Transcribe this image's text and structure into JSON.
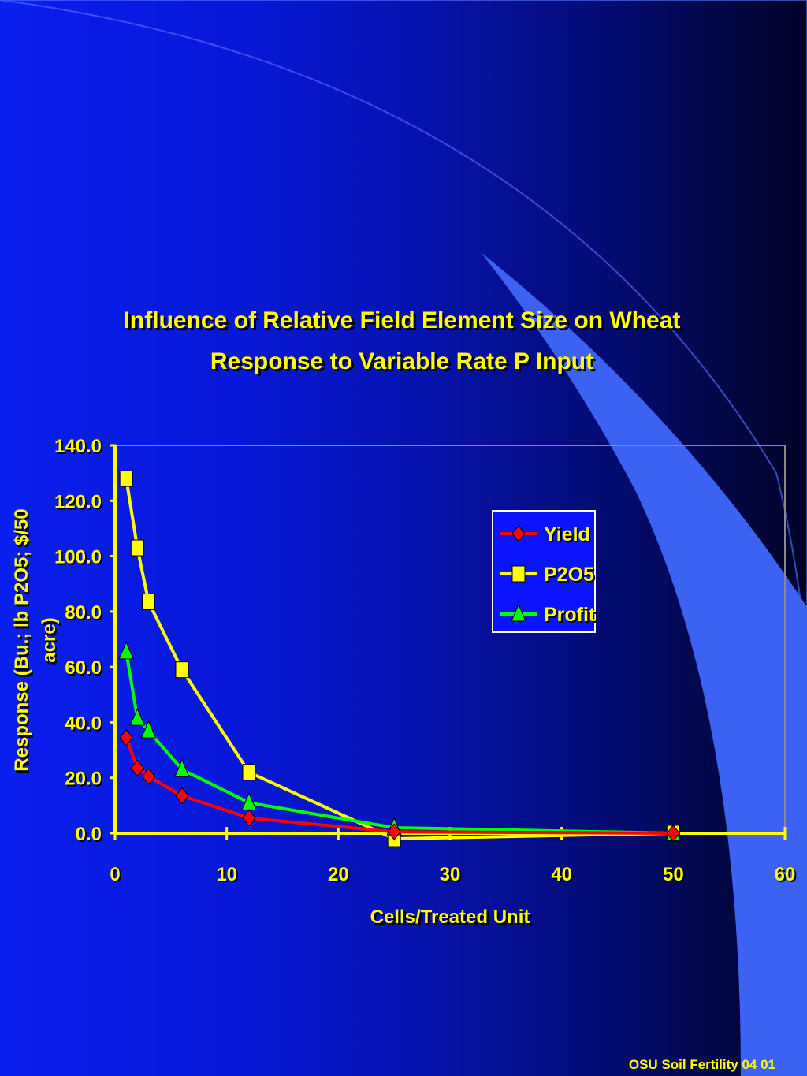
{
  "slide": {
    "footer": "OSU Soil Fertility 04 01"
  },
  "colors": {
    "axis": "#ffff00",
    "yield": "#ff0000",
    "p2o5": "#ffff00",
    "profit": "#00ff00",
    "legend_border": "#ffffff"
  },
  "chart_data": {
    "type": "line",
    "title": "Influence of Relative Field Element Size on Wheat Response to Variable Rate P Input",
    "title_lines": [
      "Influence of Relative Field Element Size on Wheat",
      "Response to Variable Rate P Input"
    ],
    "xlabel": "Cells/Treated Unit",
    "ylabel": "Response (Bu.; lb P2O5; $/50 acre)",
    "ylabel_lines": [
      "Response (Bu.; lb P2O5; $/50",
      "acre)"
    ],
    "xlim": [
      0,
      60
    ],
    "ylim": [
      0,
      140
    ],
    "x_ticks": [
      "0",
      "10",
      "20",
      "30",
      "40",
      "50",
      "60"
    ],
    "y_ticks": [
      "0.0",
      "20.0",
      "40.0",
      "60.0",
      "80.0",
      "100.0",
      "120.0",
      "140.0"
    ],
    "legend_position": "top-right",
    "grid": false,
    "series": [
      {
        "name": "Yield",
        "marker": "diamond",
        "color": "#ff0000",
        "x": [
          1,
          2,
          3,
          6,
          12,
          25,
          50
        ],
        "y": [
          34.5,
          23.5,
          20.5,
          13.5,
          5.5,
          0.5,
          0
        ]
      },
      {
        "name": "P2O5",
        "marker": "square",
        "color": "#ffff00",
        "x": [
          1,
          2,
          3,
          6,
          12,
          25,
          50
        ],
        "y": [
          128,
          103,
          83.5,
          59,
          22,
          -2,
          0
        ]
      },
      {
        "name": "Profit",
        "marker": "triangle",
        "color": "#00ff00",
        "x": [
          1,
          2,
          3,
          6,
          12,
          25,
          50
        ],
        "y": [
          65.5,
          41.5,
          37,
          23,
          11,
          2,
          0
        ]
      }
    ]
  }
}
